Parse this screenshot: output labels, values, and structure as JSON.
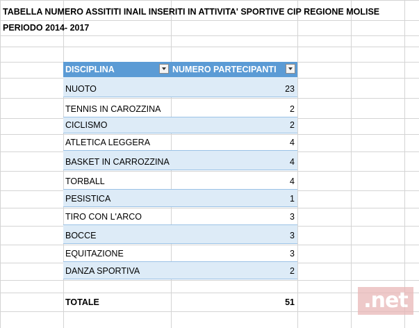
{
  "sheet": {
    "title_line1": "TABELLA NUMERO ASSITITI INAIL INSERITI IN ATTIVITA' SPORTIVE CIP REGIONE MOLISE",
    "title_line2": "PERIODO 2014- 2017"
  },
  "table": {
    "header": {
      "col1": "DISCIPLINA",
      "col2": "NUMERO PARTECIPANTI"
    },
    "rows": [
      {
        "disciplina": "NUOTO",
        "partecipanti": "23"
      },
      {
        "disciplina": "TENNIS IN CAROZZINA",
        "partecipanti": "2"
      },
      {
        "disciplina": "CICLISMO",
        "partecipanti": "2"
      },
      {
        "disciplina": "ATLETICA LEGGERA",
        "partecipanti": "4"
      },
      {
        "disciplina": "BASKET IN CARROZZINA",
        "partecipanti": "4"
      },
      {
        "disciplina": "TORBALL",
        "partecipanti": "4"
      },
      {
        "disciplina": "PESISTICA",
        "partecipanti": "1"
      },
      {
        "disciplina": "TIRO CON L'ARCO",
        "partecipanti": "3"
      },
      {
        "disciplina": "BOCCE",
        "partecipanti": "3"
      },
      {
        "disciplina": "EQUITAZIONE",
        "partecipanti": "3"
      },
      {
        "disciplina": "DANZA SPORTIVA",
        "partecipanti": "2"
      }
    ],
    "total": {
      "label": "TOTALE",
      "value": "51"
    }
  },
  "watermark": {
    "text": ".net"
  },
  "colors": {
    "header_bg": "#5b9bd5",
    "band_bg": "#ddebf7",
    "row_border": "#9bc2e6"
  }
}
